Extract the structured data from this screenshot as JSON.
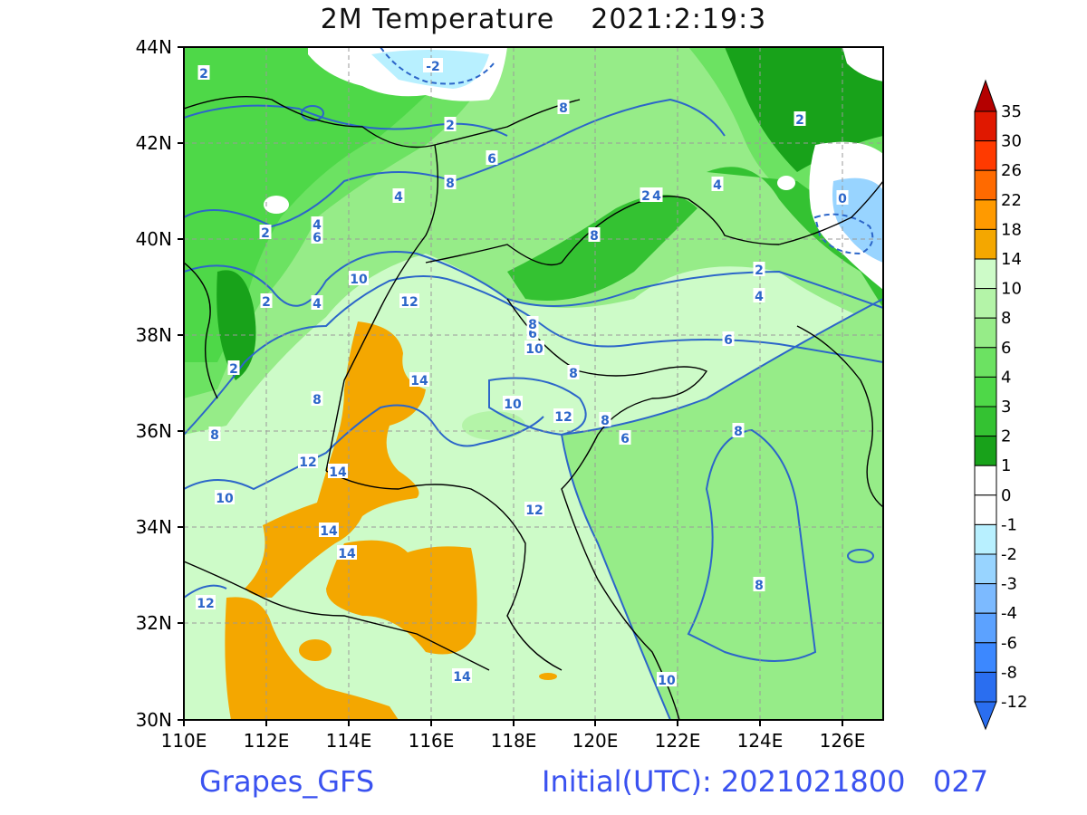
{
  "title": {
    "field": "2M Temperature",
    "valid_time": "2021:2:19:3"
  },
  "footer": {
    "model": "Grapes_GFS",
    "initial_label": "Initial(UTC): 2021021800",
    "forecast_hour": "027"
  },
  "map": {
    "lon_range": [
      110,
      127
    ],
    "lat_range": [
      30,
      44
    ],
    "x_ticks": [
      "110E",
      "112E",
      "114E",
      "116E",
      "118E",
      "120E",
      "122E",
      "124E",
      "126E"
    ],
    "y_ticks": [
      "44N",
      "42N",
      "40N",
      "38N",
      "36N",
      "34N",
      "32N",
      "30N"
    ],
    "gridlines": "dashed",
    "contour_interval_labels": [
      "-2",
      "2",
      "2",
      "2",
      "2",
      "2",
      "2",
      "2",
      "4",
      "4",
      "4",
      "4",
      "4",
      "6",
      "6",
      "6",
      "6",
      "6",
      "8",
      "8",
      "8",
      "8",
      "8",
      "8",
      "8",
      "8",
      "10",
      "10",
      "10",
      "10",
      "10",
      "12",
      "12",
      "12",
      "12",
      "14",
      "14",
      "14",
      "14",
      "14",
      "0",
      "2",
      "4"
    ]
  },
  "colorbar": {
    "levels": [
      "35",
      "30",
      "26",
      "22",
      "18",
      "14",
      "10",
      "8",
      "6",
      "4",
      "3",
      "2",
      "1",
      "0",
      "-1",
      "-2",
      "-3",
      "-4",
      "-6",
      "-8",
      "-12"
    ],
    "colors": [
      "#b40000",
      "#e01800",
      "#ff3a00",
      "#ff6a00",
      "#ff9a00",
      "#f4a700",
      "#cdfbc8",
      "#b4f4a8",
      "#96ec88",
      "#6ce262",
      "#4ed848",
      "#34c232",
      "#18a21a",
      "#ffffff",
      "#ffffff",
      "#b8f0ff",
      "#98d4ff",
      "#7cbaff",
      "#5ca2ff",
      "#3c88ff",
      "#2a6ef0"
    ]
  },
  "colors": {
    "contour": "#2c66c9",
    "footer_text": "#3a52f0",
    "ocean_green": "#96ec88",
    "land_light": "#cdfbc8",
    "warm": "#f4a700"
  }
}
